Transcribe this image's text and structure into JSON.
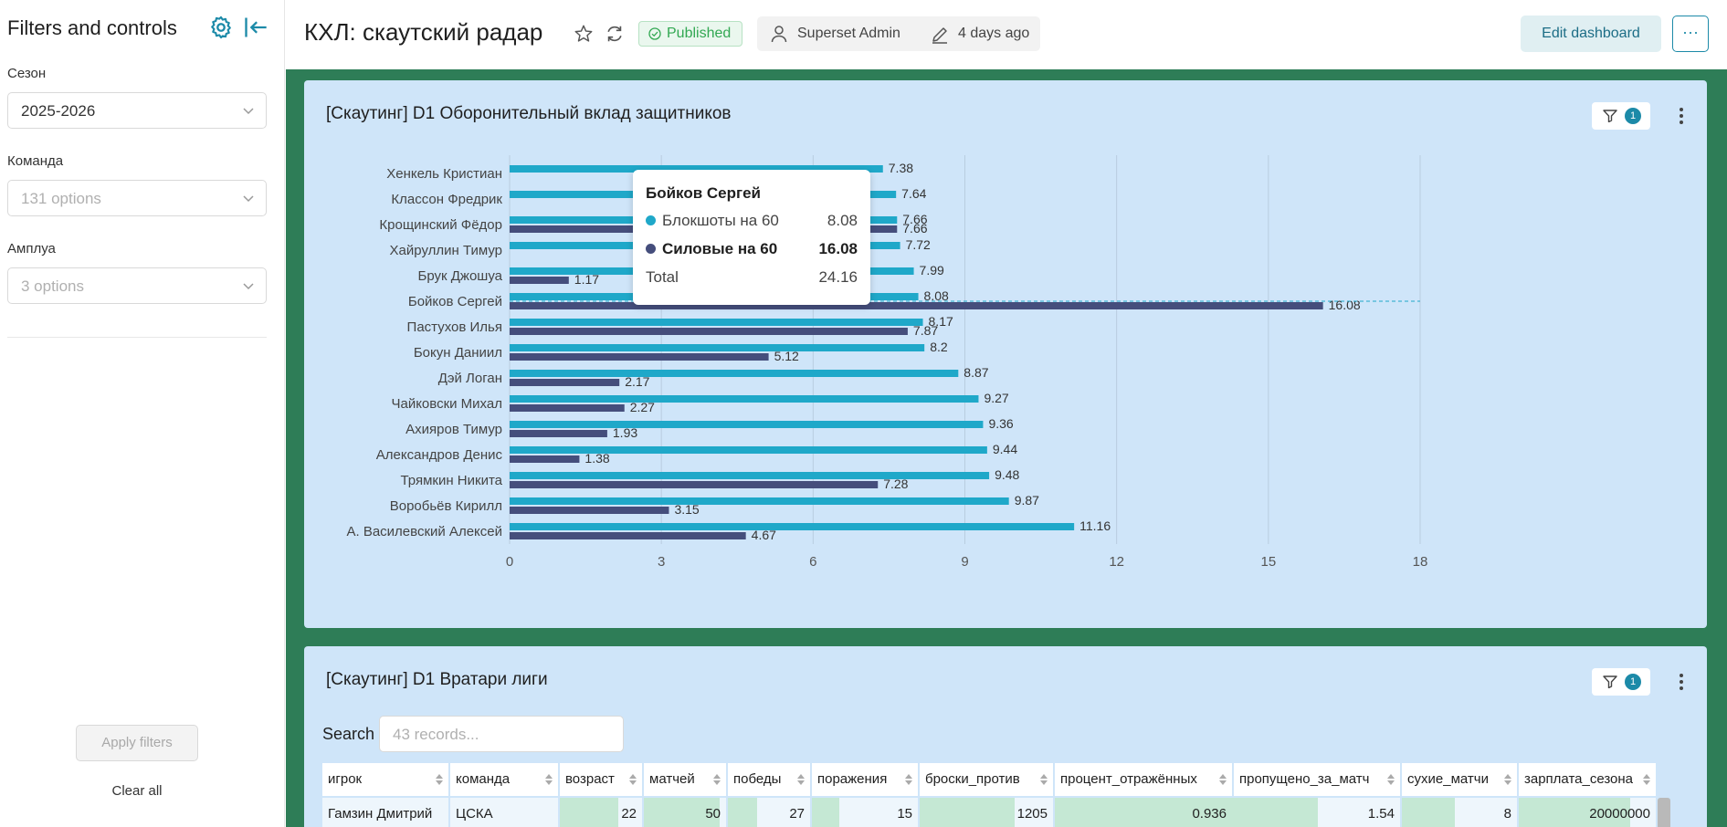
{
  "sidebar": {
    "title": "Filters and controls",
    "filters": [
      {
        "label": "Сезон",
        "value": "2025-2026",
        "placeholder": false
      },
      {
        "label": "Команда",
        "value": "131 options",
        "placeholder": true
      },
      {
        "label": "Амплуа",
        "value": "3 options",
        "placeholder": true
      }
    ],
    "apply_label": "Apply filters",
    "clear_label": "Clear all"
  },
  "header": {
    "title": "КХЛ: скаутский радар",
    "status": "Published",
    "owner": "Superset Admin",
    "modified": "4 days ago",
    "edit_label": "Edit dashboard",
    "more_label": "···"
  },
  "chart_panel": {
    "title": "[Скаутинг] D1 Оборонительный вклад защитников",
    "filter_count": "1",
    "chart_data": {
      "type": "bar",
      "orientation": "horizontal",
      "categories": [
        "Хенкель Кристиан",
        "Классон Фредрик",
        "Крощинский Фёдор",
        "Хайруллин Тимур",
        "Брук Джошуа",
        "Бойков Сергей",
        "Пастухов Илья",
        "Бокун Даниил",
        "Дэй Логан",
        "Чайковски Михал",
        "Ахияров Тимур",
        "Александров Денис",
        "Трямкин Никита",
        "Воробьёв Кирилл",
        "А. Василевский Алексей"
      ],
      "series": [
        {
          "name": "Блокшоты на 60",
          "color": "#1fa8c9",
          "values": [
            7.38,
            7.64,
            7.66,
            7.72,
            7.99,
            8.08,
            8.17,
            8.2,
            8.87,
            9.27,
            9.36,
            9.44,
            9.48,
            9.87,
            11.16
          ]
        },
        {
          "name": "Силовые на 60",
          "color": "#454e7c",
          "values": [
            null,
            null,
            7.66,
            null,
            1.17,
            16.08,
            7.87,
            5.12,
            2.17,
            2.27,
            1.93,
            1.38,
            7.28,
            3.15,
            4.67
          ]
        }
      ],
      "xlim": [
        0,
        18
      ],
      "xticks": [
        0,
        3,
        6,
        9,
        12,
        15,
        18
      ],
      "grid": true
    },
    "tooltip": {
      "title": "Бойков Сергей",
      "rows": [
        {
          "name": "Блокшоты на 60",
          "value": "8.08",
          "color": "#1fa8c9"
        },
        {
          "name": "Силовые на 60",
          "value": "16.08",
          "color": "#454e7c"
        }
      ],
      "total_label": "Total",
      "total_value": "24.16"
    }
  },
  "table_panel": {
    "title": "[Скаутинг] D1 Вратари лиги",
    "filter_count": "1",
    "search_label": "Search",
    "search_placeholder": "43 records...",
    "columns": [
      "игрок",
      "команда",
      "возраст",
      "матчей",
      "победы",
      "поражения",
      "броски_против",
      "процент_отражённых",
      "пропущено_за_матч",
      "сухие_матчи",
      "зарплата_сезона"
    ],
    "rows": [
      [
        "Гамзин Дмитрий",
        "ЦСКА",
        "22",
        "50",
        "27",
        "15",
        "1205",
        "0.936",
        "1.54",
        "8",
        "20000000"
      ]
    ],
    "bar_fractions": [
      [
        null,
        null,
        0.7,
        0.9,
        0.35,
        0.25,
        0.7,
        1.0,
        0.5,
        0.45,
        0.8
      ]
    ]
  }
}
